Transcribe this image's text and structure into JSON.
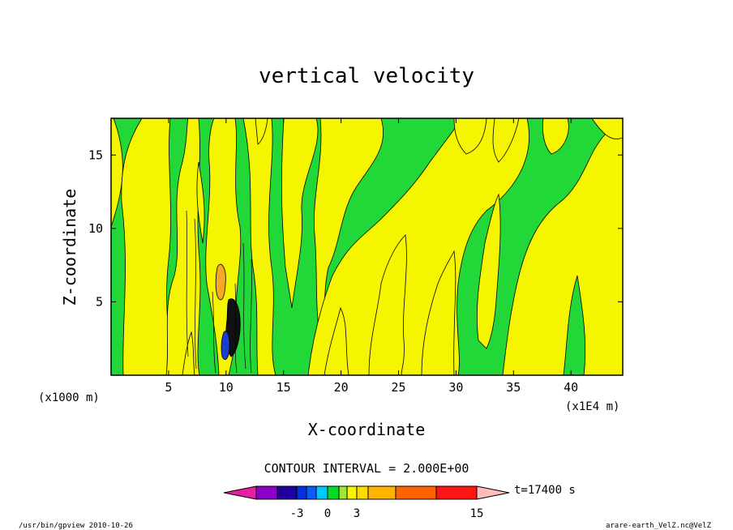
{
  "chart_data": {
    "type": "heatmap",
    "title": "vertical velocity",
    "xlabel": "X-coordinate",
    "ylabel": "Z-coordinate",
    "x_unit_label": "(x1E4 m)",
    "y_unit_label": "(x1000 m)",
    "xlim": [
      0,
      44.5
    ],
    "ylim": [
      0,
      17.5
    ],
    "x_ticks": [
      5,
      10,
      15,
      20,
      25,
      30,
      35,
      40
    ],
    "y_ticks": [
      5,
      10,
      15
    ],
    "contour_interval": "CONTOUR INTERVAL = 2.000E+00",
    "time_label": "t=17400 s",
    "colorbar": {
      "colors": [
        "#e61ea0",
        "#8c00c8",
        "#1e00a0",
        "#0032dc",
        "#0a5aff",
        "#00c8ff",
        "#00dc28",
        "#a0e632",
        "#f5f500",
        "#ffdc00",
        "#ffb400",
        "#ff6400",
        "#ff1414",
        "#ff7878",
        "#ffbcbc"
      ],
      "tick_labels": [
        "-3",
        "0",
        "3",
        "15"
      ]
    },
    "fill_levels": {
      "positive": "#f5f500",
      "negative": "#22d838",
      "strong_positive": "#f3a82a",
      "strong_negative": "#1d3cd0"
    }
  },
  "footer": {
    "left": "/usr/bin/gpview  2010-10-26",
    "right": "arare-earth_VelZ.nc@VelZ"
  }
}
